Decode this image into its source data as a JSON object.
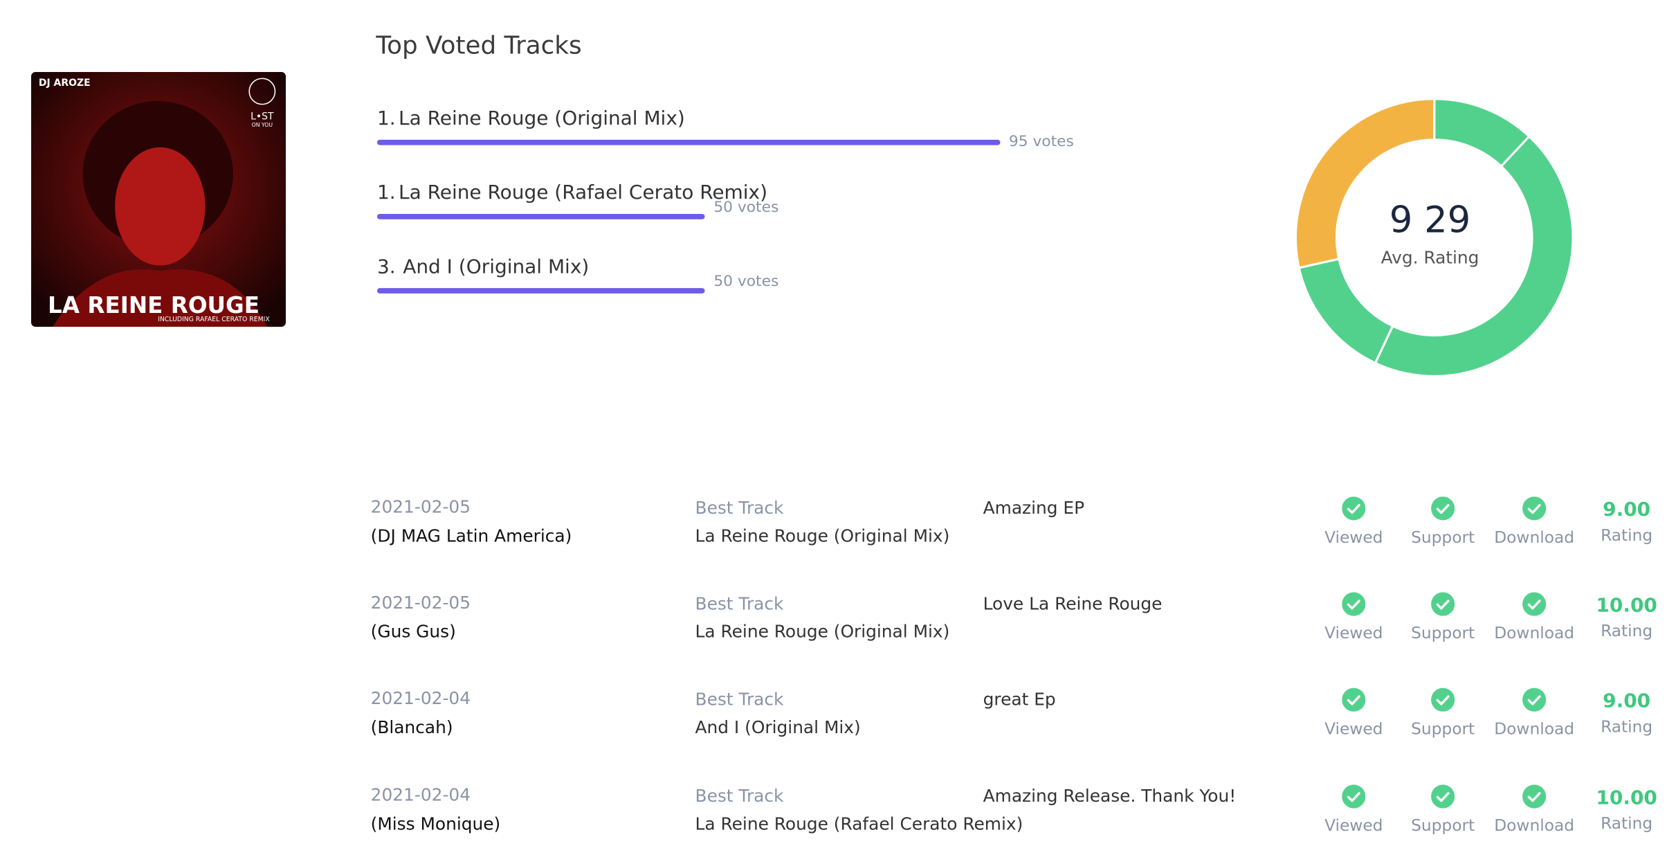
{
  "album": {
    "artist": "DJ AROZE",
    "label_line1": "L•ST",
    "label_line2": "ON YOU",
    "title": "LA REINE ROUGE",
    "subtitle": "INCLUDING RAFAEL CERATO REMIX"
  },
  "top_tracks": {
    "title": "Top Voted Tracks",
    "items": [
      {
        "rank": "1.",
        "name": "La Reine Rouge (Original Mix)",
        "votes": 95,
        "votes_label": "95 votes"
      },
      {
        "rank": "1.",
        "name": "La Reine Rouge (Rafael Cerato Remix)",
        "votes": 50,
        "votes_label": "50 votes"
      },
      {
        "rank": "3.",
        "name": "And I (Original Mix)",
        "votes": 50,
        "votes_label": "50 votes"
      }
    ]
  },
  "donut": {
    "center_value": "9 29",
    "center_label": "Avg. Rating",
    "segments": [
      12,
      45,
      14.5,
      28.5
    ],
    "colors": [
      "#52d18d",
      "#52d18d",
      "#52d18d",
      "#f3b343"
    ]
  },
  "reviews": [
    {
      "date": "2021-02-05",
      "reviewer": "(DJ MAG Latin America)",
      "best_label": "Best Track",
      "track": "La Reine Rouge (Original Mix)",
      "comment": "Amazing EP",
      "viewed": "Viewed",
      "support": "Support",
      "download": "Download",
      "rating": "9.00",
      "rating_label": "Rating"
    },
    {
      "date": "2021-02-05",
      "reviewer": "(Gus Gus)",
      "best_label": "Best Track",
      "track": "La Reine Rouge (Original Mix)",
      "comment": "Love La Reine Rouge",
      "viewed": "Viewed",
      "support": "Support",
      "download": "Download",
      "rating": "10.00",
      "rating_label": "Rating"
    },
    {
      "date": "2021-02-04",
      "reviewer": "(Blancah)",
      "best_label": "Best Track",
      "track": "And I (Original Mix)",
      "comment": "great Ep",
      "viewed": "Viewed",
      "support": "Support",
      "download": "Download",
      "rating": "9.00",
      "rating_label": "Rating"
    },
    {
      "date": "2021-02-04",
      "reviewer": "(Miss Monique)",
      "best_label": "Best Track",
      "track": "La Reine Rouge (Rafael Cerato Remix)",
      "comment": "Amazing Release. Thank You!",
      "viewed": "Viewed",
      "support": "Support",
      "download": "Download",
      "rating": "10.00",
      "rating_label": "Rating"
    }
  ]
}
